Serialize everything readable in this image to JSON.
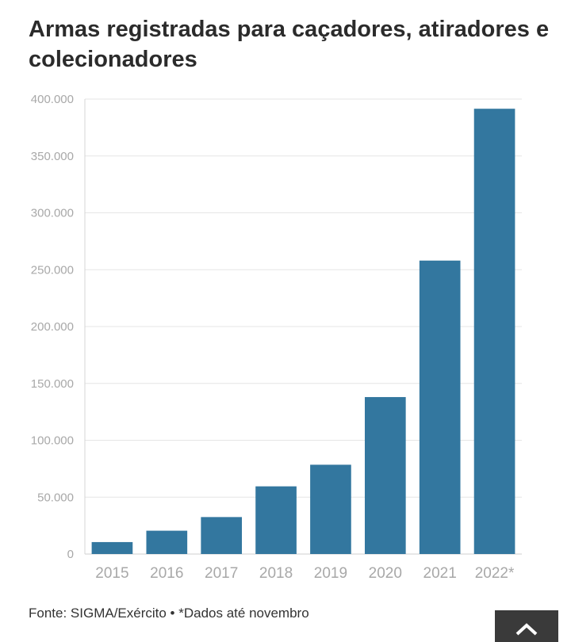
{
  "chart_data": {
    "type": "bar",
    "title": "Armas registradas para caçadores, atiradores e colecionadores",
    "categories": [
      "2015",
      "2016",
      "2017",
      "2018",
      "2019",
      "2020",
      "2021",
      "2022*"
    ],
    "values": [
      10500,
      20500,
      32500,
      59500,
      78500,
      138000,
      258000,
      391500
    ],
    "ylim": [
      0,
      400000
    ],
    "yticks": [
      "0",
      "50.000",
      "100.000",
      "150.000",
      "200.000",
      "250.000",
      "300.000",
      "350.000",
      "400.000"
    ],
    "ytick_values": [
      0,
      50000,
      100000,
      150000,
      200000,
      250000,
      300000,
      350000,
      400000
    ],
    "grid": true,
    "bar_color": "#33779f",
    "xlabel": "",
    "ylabel": ""
  },
  "footer": {
    "source": "Fonte: SIGMA/Exército • *Dados até novembro"
  },
  "scroll_top_icon": "chevron-up-icon"
}
